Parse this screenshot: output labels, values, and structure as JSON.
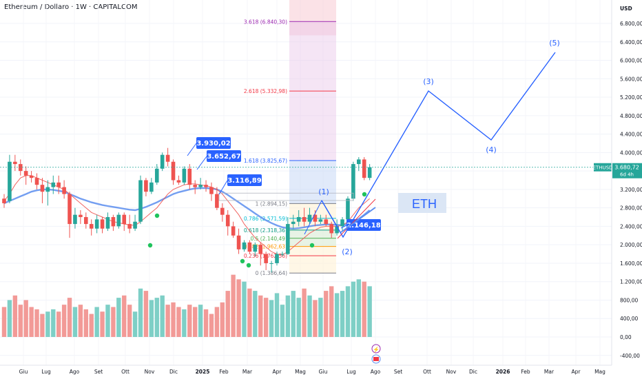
{
  "header": {
    "title": "Ethereum / Dollaro · 1W · CAPITALCOM"
  },
  "price_axis": {
    "currency": "USD"
  },
  "symbol_badge": {
    "symbol": "ETHUSD",
    "price": "3.680,72",
    "countdown": "6d 4h"
  },
  "eth_label": "ETH",
  "colors": {
    "up": "#26a69a",
    "down": "#ef5350",
    "ma_fast": "#ef5350",
    "ma_slow": "#5b8def",
    "wave": "#2962ff",
    "bg": "#ffffff"
  },
  "chart_data": {
    "type": "candlestick",
    "title": "Ethereum / Dollaro · 1W · CAPITALCOM",
    "ylim": [
      -400,
      7200
    ],
    "y_ticks": [
      "6.800,00",
      "6.400,00",
      "6.000,00",
      "5.600,00",
      "5.200,00",
      "4.800,00",
      "4.400,00",
      "4.000,00",
      "3.600,00",
      "3.200,00",
      "2.800,00",
      "2.400,00",
      "2.000,00",
      "1.600,00",
      "1.200,00",
      "800,00",
      "400,00",
      "0,00",
      "-400,00"
    ],
    "x_ticks": [
      "Giu",
      "Lug",
      "Ago",
      "Set",
      "Ott",
      "Nov",
      "Dic",
      "2025",
      "Feb",
      "Mar",
      "Apr",
      "Mag",
      "Giu",
      "Lug",
      "Ago",
      "Set",
      "Ott",
      "Nov",
      "Dic",
      "2026",
      "Feb",
      "Mar",
      "Apr",
      "Mag"
    ],
    "candles": [
      {
        "o": 3000,
        "c": 2900,
        "h": 3100,
        "l": 2800
      },
      {
        "o": 2950,
        "c": 3800,
        "h": 3950,
        "l": 2900
      },
      {
        "o": 3800,
        "c": 3750,
        "h": 3950,
        "l": 3600
      },
      {
        "o": 3750,
        "c": 3600,
        "h": 3850,
        "l": 3500
      },
      {
        "o": 3600,
        "c": 3500,
        "h": 3700,
        "l": 3300
      },
      {
        "o": 3500,
        "c": 3450,
        "h": 3600,
        "l": 3350
      },
      {
        "o": 3450,
        "c": 3300,
        "h": 3550,
        "l": 3200
      },
      {
        "o": 3300,
        "c": 3150,
        "h": 3450,
        "l": 2900
      },
      {
        "o": 3150,
        "c": 3250,
        "h": 3400,
        "l": 2850
      },
      {
        "o": 3250,
        "c": 3350,
        "h": 3500,
        "l": 3100
      },
      {
        "o": 3350,
        "c": 3250,
        "h": 3500,
        "l": 3100
      },
      {
        "o": 3250,
        "c": 3100,
        "h": 3400,
        "l": 3000
      },
      {
        "o": 3100,
        "c": 2450,
        "h": 3150,
        "l": 2150
      },
      {
        "o": 2450,
        "c": 2650,
        "h": 2800,
        "l": 2350
      },
      {
        "o": 2650,
        "c": 2600,
        "h": 2750,
        "l": 2450
      },
      {
        "o": 2600,
        "c": 2450,
        "h": 2700,
        "l": 2350
      },
      {
        "o": 2450,
        "c": 2350,
        "h": 2550,
        "l": 2200
      },
      {
        "o": 2350,
        "c": 2550,
        "h": 2650,
        "l": 2250
      },
      {
        "o": 2550,
        "c": 2350,
        "h": 2600,
        "l": 2250
      },
      {
        "o": 2350,
        "c": 2600,
        "h": 2700,
        "l": 2300
      },
      {
        "o": 2600,
        "c": 2400,
        "h": 2650,
        "l": 2300
      },
      {
        "o": 2400,
        "c": 2650,
        "h": 2700,
        "l": 2350
      },
      {
        "o": 2650,
        "c": 2450,
        "h": 2700,
        "l": 2300
      },
      {
        "o": 2450,
        "c": 2350,
        "h": 2650,
        "l": 2250
      },
      {
        "o": 2350,
        "c": 2500,
        "h": 2650,
        "l": 2300
      },
      {
        "o": 2500,
        "c": 3400,
        "h": 3500,
        "l": 2450
      },
      {
        "o": 3400,
        "c": 3150,
        "h": 3450,
        "l": 3050
      },
      {
        "o": 3150,
        "c": 3350,
        "h": 3450,
        "l": 3100
      },
      {
        "o": 3350,
        "c": 3650,
        "h": 3750,
        "l": 3300
      },
      {
        "o": 3650,
        "c": 3950,
        "h": 4000,
        "l": 3600
      },
      {
        "o": 3950,
        "c": 3800,
        "h": 4100,
        "l": 3700
      },
      {
        "o": 3800,
        "c": 3400,
        "h": 3850,
        "l": 3300
      },
      {
        "o": 3400,
        "c": 3350,
        "h": 3500,
        "l": 3300
      },
      {
        "o": 3350,
        "c": 3650,
        "h": 3700,
        "l": 3300
      },
      {
        "o": 3650,
        "c": 3300,
        "h": 3750,
        "l": 3200
      },
      {
        "o": 3300,
        "c": 3250,
        "h": 3400,
        "l": 3100
      },
      {
        "o": 3250,
        "c": 3300,
        "h": 3450,
        "l": 3200
      },
      {
        "o": 3300,
        "c": 3250,
        "h": 3400,
        "l": 3150
      },
      {
        "o": 3250,
        "c": 3100,
        "h": 3350,
        "l": 2950
      },
      {
        "o": 3100,
        "c": 2800,
        "h": 3250,
        "l": 2750
      },
      {
        "o": 2800,
        "c": 2650,
        "h": 2900,
        "l": 2500
      },
      {
        "o": 2650,
        "c": 2400,
        "h": 2750,
        "l": 2200
      },
      {
        "o": 2400,
        "c": 2200,
        "h": 2500,
        "l": 2150
      },
      {
        "o": 2200,
        "c": 1900,
        "h": 2350,
        "l": 1800
      },
      {
        "o": 1900,
        "c": 2050,
        "h": 2100,
        "l": 1850
      },
      {
        "o": 2050,
        "c": 1850,
        "h": 2100,
        "l": 1800
      },
      {
        "o": 1850,
        "c": 2000,
        "h": 2050,
        "l": 1750
      },
      {
        "o": 2000,
        "c": 1800,
        "h": 2050,
        "l": 1550
      },
      {
        "o": 1800,
        "c": 1600,
        "h": 1850,
        "l": 1450
      },
      {
        "o": 1600,
        "c": 1600,
        "h": 1650,
        "l": 1400
      },
      {
        "o": 1600,
        "c": 1800,
        "h": 1850,
        "l": 1550
      },
      {
        "o": 1800,
        "c": 1800,
        "h": 1850,
        "l": 1750
      },
      {
        "o": 1800,
        "c": 2450,
        "h": 2600,
        "l": 1780
      },
      {
        "o": 2450,
        "c": 2500,
        "h": 2650,
        "l": 2350
      },
      {
        "o": 2500,
        "c": 2600,
        "h": 2750,
        "l": 2400
      },
      {
        "o": 2600,
        "c": 2500,
        "h": 2800,
        "l": 2400
      },
      {
        "o": 2500,
        "c": 2650,
        "h": 2800,
        "l": 2450
      },
      {
        "o": 2650,
        "c": 2500,
        "h": 2750,
        "l": 2400
      },
      {
        "o": 2500,
        "c": 2550,
        "h": 2650,
        "l": 2450
      },
      {
        "o": 2550,
        "c": 2450,
        "h": 2650,
        "l": 2400
      },
      {
        "o": 2450,
        "c": 2250,
        "h": 2500,
        "l": 2150
      },
      {
        "o": 2250,
        "c": 2400,
        "h": 2550,
        "l": 2200
      },
      {
        "o": 2400,
        "c": 2550,
        "h": 2600,
        "l": 2300
      },
      {
        "o": 2550,
        "c": 3000,
        "h": 3050,
        "l": 2500
      },
      {
        "o": 3000,
        "c": 3750,
        "h": 3800,
        "l": 2950
      },
      {
        "o": 3750,
        "c": 3850,
        "h": 3900,
        "l": 3600
      },
      {
        "o": 3850,
        "c": 3450,
        "h": 3900,
        "l": 3400
      },
      {
        "o": 3450,
        "c": 3680.72,
        "h": 3750,
        "l": 3400
      }
    ],
    "volume_scale": "same price axis (histogram 0–1.350)",
    "volumes": [
      650,
      800,
      900,
      700,
      800,
      650,
      600,
      500,
      550,
      600,
      550,
      700,
      850,
      650,
      700,
      600,
      500,
      650,
      550,
      700,
      650,
      850,
      900,
      700,
      550,
      1050,
      1000,
      800,
      850,
      900,
      700,
      750,
      650,
      600,
      700,
      650,
      700,
      600,
      500,
      650,
      750,
      1000,
      1350,
      1250,
      1200,
      1050,
      1000,
      900,
      850,
      800,
      950,
      700,
      900,
      1000,
      850,
      1050,
      900,
      800,
      850,
      1000,
      1100,
      950,
      1000,
      1100,
      1200,
      1250,
      1200,
      1100
    ],
    "ma_fast": [
      2950,
      3100,
      3300,
      3450,
      3500,
      3500,
      3450,
      3400,
      3350,
      3300,
      3250,
      3200,
      3100,
      3000,
      2900,
      2800,
      2700,
      2650,
      2600,
      2550,
      2500,
      2480,
      2450,
      2430,
      2420,
      2500,
      2600,
      2700,
      2800,
      2950,
      3100,
      3200,
      3250,
      3300,
      3320,
      3320,
      3300,
      3280,
      3250,
      3200,
      3100,
      2950,
      2800,
      2650,
      2450,
      2300,
      2150,
      2050,
      1950,
      1850,
      1800,
      1780,
      1850,
      1950,
      2050,
      2150,
      2250,
      2320,
      2380,
      2400,
      2400,
      2400,
      2420,
      2500,
      2650,
      2800,
      2900,
      3000
    ],
    "ma_slow": [
      2900,
      2950,
      3000,
      3050,
      3100,
      3150,
      3180,
      3200,
      3200,
      3190,
      3170,
      3150,
      3100,
      3050,
      3000,
      2960,
      2920,
      2890,
      2860,
      2840,
      2820,
      2800,
      2780,
      2760,
      2750,
      2780,
      2820,
      2870,
      2920,
      2980,
      3040,
      3100,
      3140,
      3170,
      3200,
      3220,
      3230,
      3230,
      3220,
      3200,
      3150,
      3080,
      3000,
      2920,
      2840,
      2760,
      2680,
      2600,
      2530,
      2470,
      2420,
      2380,
      2360,
      2350,
      2360,
      2380,
      2400,
      2420,
      2430,
      2440,
      2440,
      2430,
      2430,
      2450,
      2500,
      2560,
      2650,
      2750
    ],
    "fibonacci": [
      {
        "label": "0 (1.386,64)",
        "value": 1386.64,
        "color": "#787b86"
      },
      {
        "label": "0.236 (1.762,56)",
        "value": 1762.56,
        "color": "#f23645"
      },
      {
        "label": "0.382 (1.962,63)",
        "value": 1962.63,
        "color": "#ff9800"
      },
      {
        "label": "0.5 (2.140,49)",
        "value": 2140.49,
        "color": "#4caf50"
      },
      {
        "label": "0.618 (2.318,36)",
        "value": 2318.36,
        "color": "#089981"
      },
      {
        "label": "0.786 (2.571,59)",
        "value": 2571.59,
        "color": "#00bcd4"
      },
      {
        "label": "1 (2.894,15)",
        "value": 2894.15,
        "color": "#787b86"
      },
      {
        "label": "1.618 (3.825,67)",
        "value": 3825.67,
        "color": "#2962ff"
      },
      {
        "label": "2.618 (5.332,98)",
        "value": 5332.98,
        "color": "#f23645"
      },
      {
        "label": "3.618 (6.840,30)",
        "value": 6840.3,
        "color": "#9c27b0"
      }
    ],
    "price_callouts": [
      "3.930,02",
      "3.652,67",
      "3.116,89",
      "2.146,18"
    ],
    "elliott_waves": [
      {
        "label": "(1)",
        "price": 2894
      },
      {
        "label": "(2)",
        "price": 2146
      },
      {
        "label": "(3)",
        "price": 5332
      },
      {
        "label": "(4)",
        "price": 4300
      },
      {
        "label": "(5)",
        "price": 6150
      }
    ]
  }
}
